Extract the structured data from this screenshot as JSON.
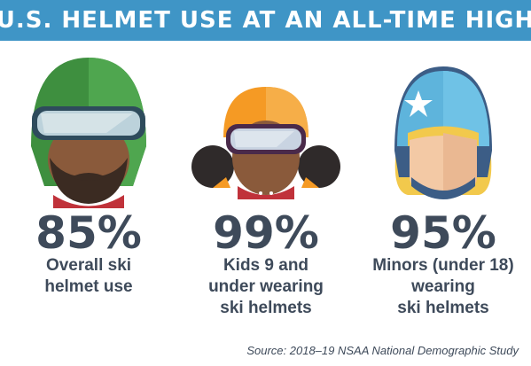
{
  "title": "U.S. HELMET USE AT AN ALL-TIME HIGH",
  "stats": [
    {
      "value": "85%",
      "label": "Overall ski\nhelmet use",
      "icon": "adult-bearded-skier-helmet-icon"
    },
    {
      "value": "99%",
      "label": "Kids 9 and\nunder wearing\nski helmets",
      "icon": "child-skier-helmet-icon"
    },
    {
      "value": "95%",
      "label": "Minors (under 18)\nwearing\nski helmets",
      "icon": "teen-skier-helmet-icon"
    }
  ],
  "source": "Source: 2018–19 NSAA National Demographic Study",
  "colors": {
    "banner": "#3f95c6",
    "text": "#3e4a5a",
    "green_helmet": "#3e8f3f",
    "orange_helmet": "#f59a24",
    "blue_helmet": "#5eb4dc"
  }
}
